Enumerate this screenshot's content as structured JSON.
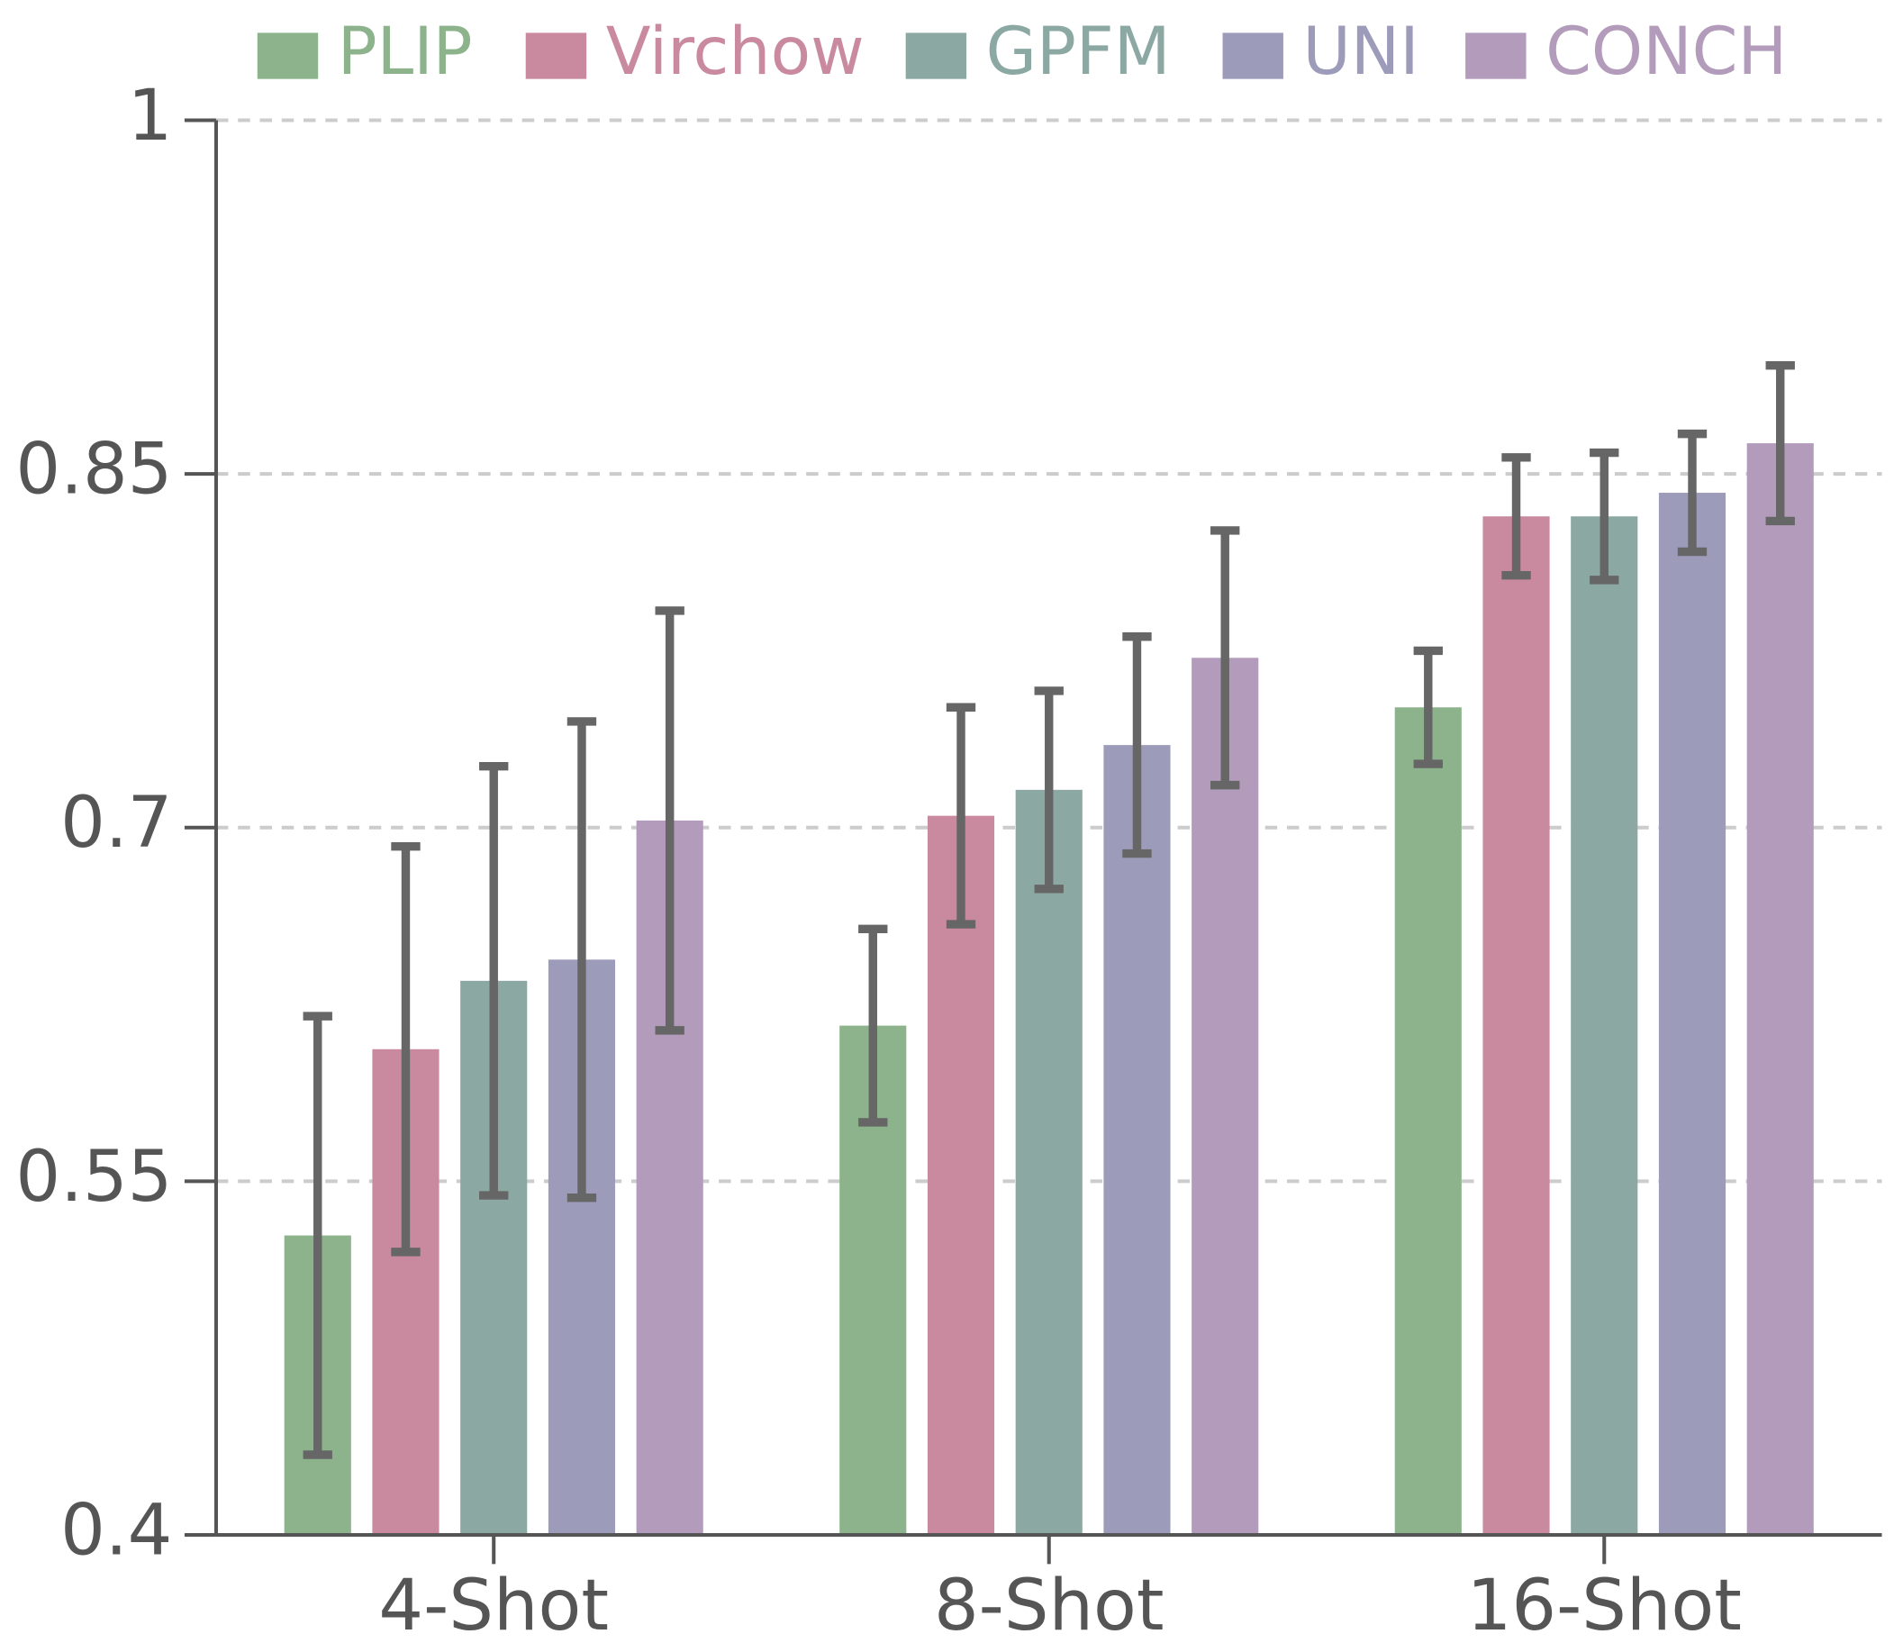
{
  "chart_data": {
    "type": "bar",
    "categories": [
      "4-Shot",
      "8-Shot",
      "16-Shot"
    ],
    "series": [
      {
        "name": "PLIP",
        "color": "#8db38c",
        "values": [
          0.527,
          0.616,
          0.751
        ],
        "errors": [
          0.093,
          0.041,
          0.024
        ]
      },
      {
        "name": "Virchow",
        "color": "#c98aa0",
        "values": [
          0.606,
          0.705,
          0.832
        ],
        "errors": [
          0.086,
          0.046,
          0.025
        ]
      },
      {
        "name": "GPFM",
        "color": "#8ca8a3",
        "values": [
          0.635,
          0.716,
          0.832
        ],
        "errors": [
          0.091,
          0.042,
          0.027
        ]
      },
      {
        "name": "UNI",
        "color": "#9d9bba",
        "values": [
          0.644,
          0.735,
          0.842
        ],
        "errors": [
          0.101,
          0.046,
          0.025
        ]
      },
      {
        "name": "CONCH",
        "color": "#b39cbb",
        "values": [
          0.703,
          0.772,
          0.863
        ],
        "errors": [
          0.089,
          0.054,
          0.033
        ]
      }
    ],
    "ylim": [
      0.4,
      1
    ],
    "yticks": [
      0.4,
      0.55,
      0.7,
      0.85,
      1
    ],
    "grid": true,
    "legend": "top"
  }
}
